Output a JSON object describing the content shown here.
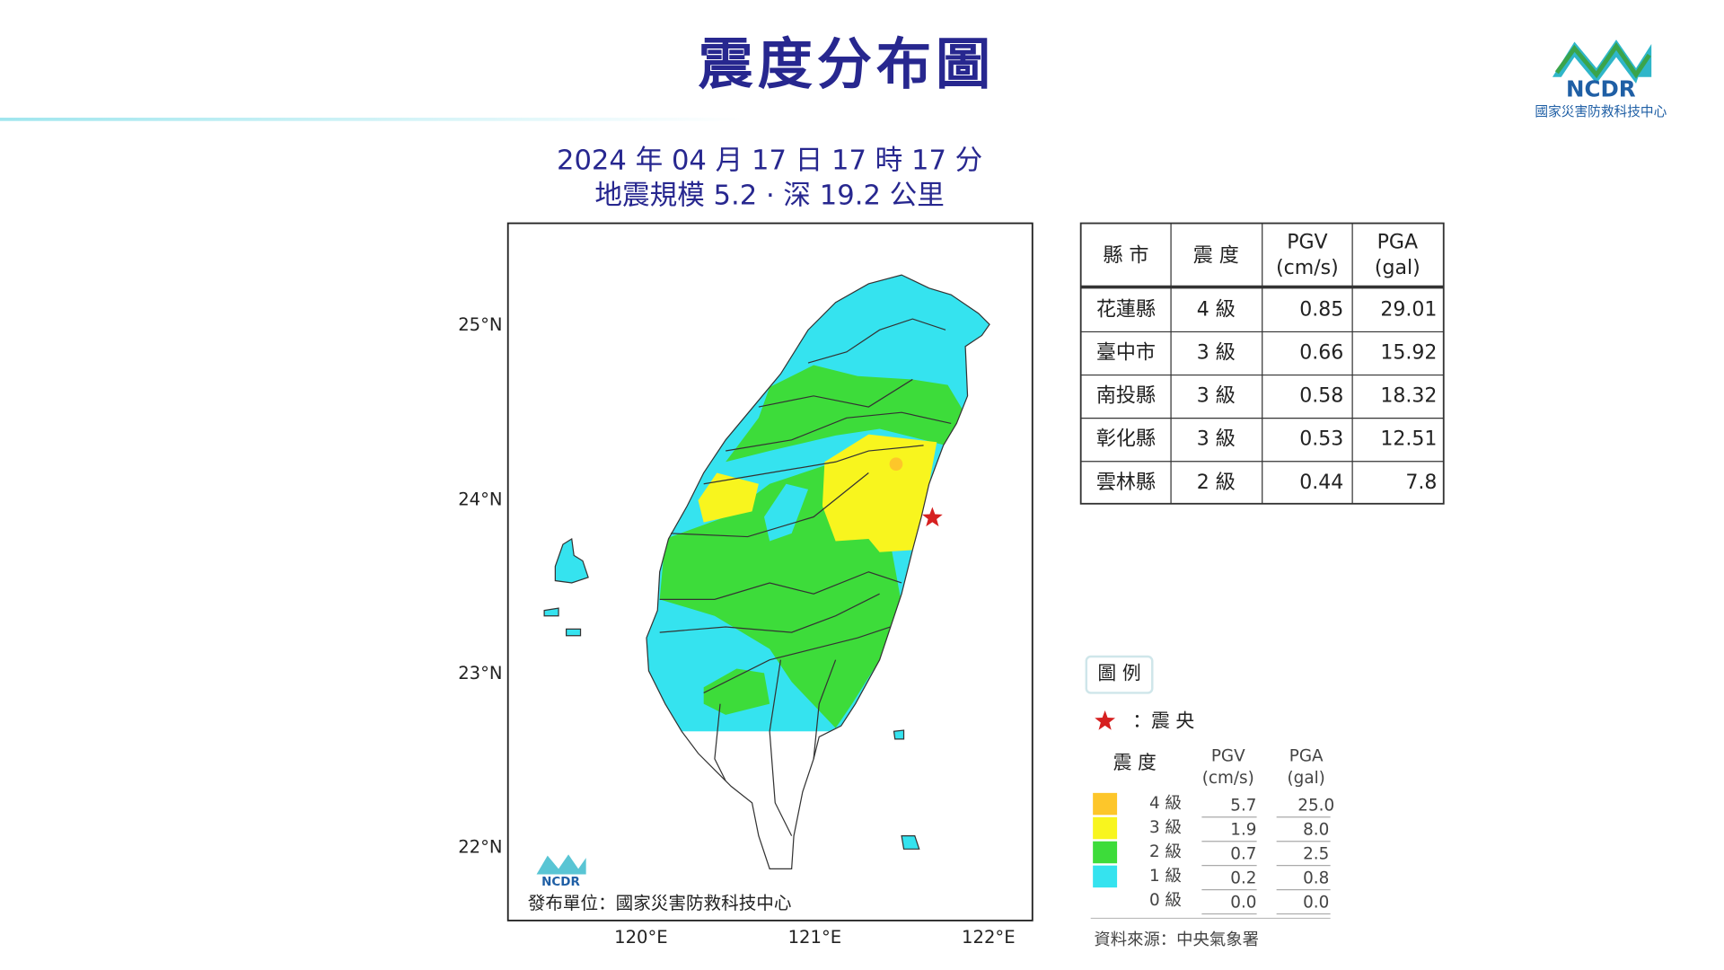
{
  "header": {
    "title": "震度分布圖",
    "logo_text": "NCDR",
    "logo_org": "國家災害防救科技中心"
  },
  "event": {
    "time": "2024 年 04 月 17 日 17 時 17 分",
    "info": "地震規模 5.2 · 深 19.2 公里"
  },
  "map": {
    "lat_labels": [
      "25°N",
      "24°N",
      "23°N",
      "22°N"
    ],
    "lon_labels": [
      "120°E",
      "121°E",
      "122°E"
    ],
    "logo_text": "NCDR",
    "publisher": "發布單位：國家災害防救科技中心"
  },
  "table": {
    "headers": [
      [
        "縣 市"
      ],
      [
        "震 度"
      ],
      [
        "PGV",
        "(cm/s)"
      ],
      [
        "PGA",
        "(gal)"
      ]
    ],
    "rows": [
      [
        "花蓮縣",
        "4 級",
        "0.85",
        "29.01"
      ],
      [
        "臺中市",
        "3 級",
        "0.66",
        "15.92"
      ],
      [
        "南投縣",
        "3 級",
        "0.58",
        "18.32"
      ],
      [
        "彰化縣",
        "3 級",
        "0.53",
        "12.51"
      ],
      [
        "雲林縣",
        "2 級",
        "0.44",
        "7.8"
      ]
    ]
  },
  "legend": {
    "title": "圖 例",
    "epicenter": "：震 央",
    "intensity_header": "震 度",
    "pgv_header": [
      "PGV",
      "(cm/s)"
    ],
    "pga_header": [
      "PGA",
      "(gal)"
    ],
    "levels": [
      {
        "label": "4 級",
        "pgv": "5.7",
        "pga": "25.0",
        "color": "#fdc62a"
      },
      {
        "label": "3 級",
        "pgv": "1.9",
        "pga": "8.0",
        "color": "#f8f51e"
      },
      {
        "label": "2 級",
        "pgv": "0.7",
        "pga": "2.5",
        "color": "#3ddc3a"
      },
      {
        "label": "1 級",
        "pgv": "0.2",
        "pga": "0.8",
        "color": "#35e3ef"
      },
      {
        "label": "0 級",
        "pgv": "0.0",
        "pga": "0.0"
      }
    ],
    "source": "資料來源：中央氣象署"
  }
}
